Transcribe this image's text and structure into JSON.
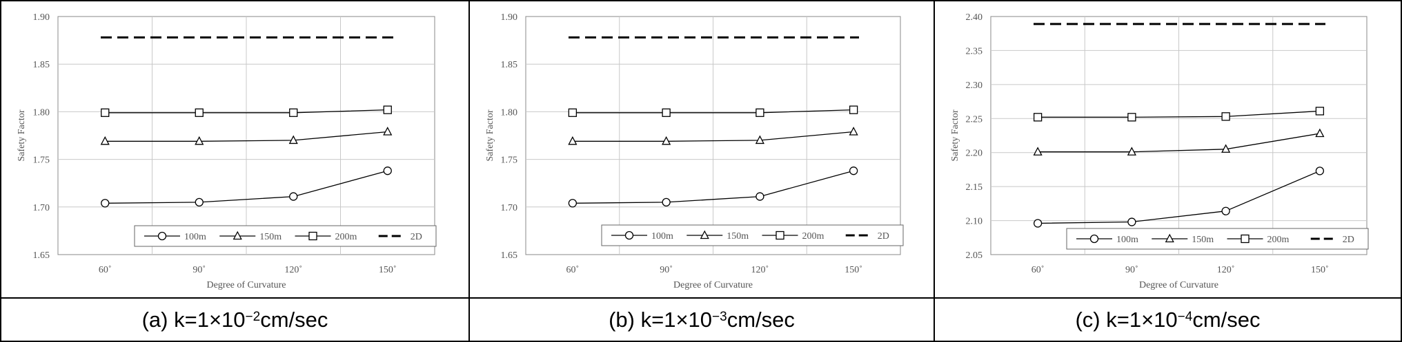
{
  "chart_data": [
    {
      "type": "line",
      "caption": {
        "prefix": "(a)  k=1×10",
        "exp": "−2",
        "suffix": "cm/sec"
      },
      "xlabel": "Degree of Curvature",
      "ylabel": "Safety Factor",
      "categories": [
        "60˚",
        "90˚",
        "120˚",
        "150˚"
      ],
      "yticks": [
        "1.65",
        "1.70",
        "1.75",
        "1.80",
        "1.85",
        "1.90"
      ],
      "ylim": [
        1.65,
        1.9
      ],
      "grid": true,
      "legend_position": "bottom-right",
      "series": [
        {
          "name": "100m",
          "marker": "circle",
          "values": [
            1.704,
            1.705,
            1.711,
            1.738
          ]
        },
        {
          "name": "150m",
          "marker": "triangle",
          "values": [
            1.769,
            1.769,
            1.77,
            1.779
          ]
        },
        {
          "name": "200m",
          "marker": "square",
          "values": [
            1.799,
            1.799,
            1.799,
            1.802
          ]
        },
        {
          "name": "2D",
          "marker": "dashed",
          "values": [
            1.878,
            1.878,
            1.878,
            1.878
          ]
        }
      ]
    },
    {
      "type": "line",
      "caption": {
        "prefix": "(b)  k=1×10",
        "exp": "−3",
        "suffix": "cm/sec"
      },
      "xlabel": "Degree of Curvature",
      "ylabel": "Safety Factor",
      "categories": [
        "60˚",
        "90˚",
        "120˚",
        "150˚"
      ],
      "yticks": [
        "1.65",
        "1.70",
        "1.75",
        "1.80",
        "1.85",
        "1.90"
      ],
      "ylim": [
        1.65,
        1.9
      ],
      "grid": true,
      "legend_position": "bottom-right",
      "series": [
        {
          "name": "100m",
          "marker": "circle",
          "values": [
            1.704,
            1.705,
            1.711,
            1.738
          ]
        },
        {
          "name": "150m",
          "marker": "triangle",
          "values": [
            1.769,
            1.769,
            1.77,
            1.779
          ]
        },
        {
          "name": "200m",
          "marker": "square",
          "values": [
            1.799,
            1.799,
            1.799,
            1.802
          ]
        },
        {
          "name": "2D",
          "marker": "dashed",
          "values": [
            1.878,
            1.878,
            1.878,
            1.878
          ]
        }
      ]
    },
    {
      "type": "line",
      "caption": {
        "prefix": "(c)  k=1×10",
        "exp": "−4",
        "suffix": "cm/sec"
      },
      "xlabel": "Degree of Curvature",
      "ylabel": "Safety Factor",
      "categories": [
        "60˚",
        "90˚",
        "120˚",
        "150˚"
      ],
      "yticks": [
        "2.05",
        "2.10",
        "2.15",
        "2.20",
        "2.25",
        "2.30",
        "2.35",
        "2.40"
      ],
      "ylim": [
        2.05,
        2.4
      ],
      "grid": true,
      "legend_position": "bottom-right",
      "series": [
        {
          "name": "100m",
          "marker": "circle",
          "values": [
            2.096,
            2.098,
            2.114,
            2.173
          ]
        },
        {
          "name": "150m",
          "marker": "triangle",
          "values": [
            2.201,
            2.201,
            2.205,
            2.228
          ]
        },
        {
          "name": "200m",
          "marker": "square",
          "values": [
            2.252,
            2.252,
            2.253,
            2.261
          ]
        },
        {
          "name": "2D",
          "marker": "dashed",
          "values": [
            2.389,
            2.389,
            2.389,
            2.389
          ]
        }
      ]
    }
  ]
}
